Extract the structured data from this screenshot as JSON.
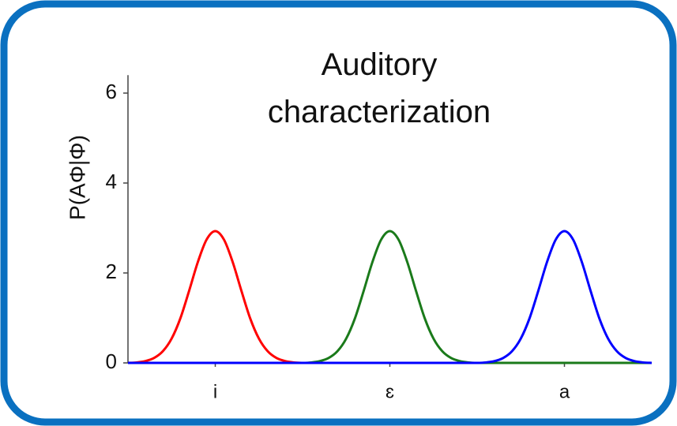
{
  "chart_data": {
    "type": "line",
    "title": "Auditory characterization",
    "ylabel": "P(AΦ|Φ)",
    "x": [
      0.5,
      0.55,
      0.6,
      0.65,
      0.7,
      0.75,
      0.8,
      0.85,
      0.9,
      0.95,
      1,
      1.05,
      1.1,
      1.15,
      1.2,
      1.25,
      1.3,
      1.35,
      1.4,
      1.45,
      1.5,
      1.55,
      1.6,
      1.65,
      1.7,
      1.75,
      1.8,
      1.85,
      1.9,
      1.95,
      2,
      2.05,
      2.1,
      2.15,
      2.2,
      2.25,
      2.3,
      2.35,
      2.4,
      2.45,
      2.5,
      2.55,
      2.6,
      2.65,
      2.7,
      2.75,
      2.8,
      2.85,
      2.9,
      2.95,
      3,
      3.05,
      3.1,
      3.15,
      3.2,
      3.25,
      3.3,
      3.35,
      3.4,
      3.45,
      3.5
    ],
    "series": [
      {
        "name": "i",
        "color": "#ff0000",
        "values": [
          0,
          0.01,
          0.04,
          0.11,
          0.26,
          0.54,
          0.99,
          1.6,
          2.24,
          2.74,
          2.93,
          2.74,
          2.24,
          1.6,
          0.99,
          0.54,
          0.26,
          0.11,
          0.04,
          0.01,
          0,
          0,
          0,
          0,
          0,
          0,
          0,
          0,
          0,
          0,
          0,
          0,
          0,
          0,
          0,
          0,
          0,
          0,
          0,
          0,
          0,
          0,
          0,
          0,
          0,
          0,
          0,
          0,
          0,
          0,
          0,
          0,
          0,
          0,
          0,
          0,
          0,
          0,
          0,
          0,
          0
        ]
      },
      {
        "name": "ɛ",
        "color": "#1a7a1a",
        "values": [
          0,
          0,
          0,
          0,
          0,
          0,
          0,
          0,
          0,
          0,
          0,
          0,
          0,
          0,
          0,
          0,
          0,
          0,
          0,
          0,
          0,
          0.01,
          0.04,
          0.11,
          0.26,
          0.54,
          0.99,
          1.6,
          2.24,
          2.74,
          2.93,
          2.74,
          2.24,
          1.6,
          0.99,
          0.54,
          0.26,
          0.11,
          0.04,
          0.01,
          0,
          0,
          0,
          0,
          0,
          0,
          0,
          0,
          0,
          0,
          0,
          0,
          0,
          0,
          0,
          0,
          0,
          0,
          0,
          0,
          0
        ]
      },
      {
        "name": "a",
        "color": "#0000ff",
        "values": [
          0,
          0,
          0,
          0,
          0,
          0,
          0,
          0,
          0,
          0,
          0,
          0,
          0,
          0,
          0,
          0,
          0,
          0,
          0,
          0,
          0,
          0,
          0,
          0,
          0,
          0,
          0,
          0,
          0,
          0,
          0,
          0,
          0,
          0,
          0,
          0,
          0,
          0,
          0,
          0,
          0,
          0.01,
          0.04,
          0.11,
          0.26,
          0.54,
          0.99,
          1.6,
          2.24,
          2.74,
          2.93,
          2.74,
          2.24,
          1.6,
          0.99,
          0.54,
          0.26,
          0.11,
          0.04,
          0.01,
          0
        ]
      }
    ],
    "xlim": [
      0.5,
      3.5
    ],
    "xticks": [
      {
        "value": 1,
        "label": "i"
      },
      {
        "value": 2,
        "label": "ɛ"
      },
      {
        "value": 3,
        "label": "a"
      }
    ],
    "ylim": [
      0,
      6.4
    ],
    "yticks": [
      0,
      2,
      4,
      6
    ],
    "legend": false
  }
}
